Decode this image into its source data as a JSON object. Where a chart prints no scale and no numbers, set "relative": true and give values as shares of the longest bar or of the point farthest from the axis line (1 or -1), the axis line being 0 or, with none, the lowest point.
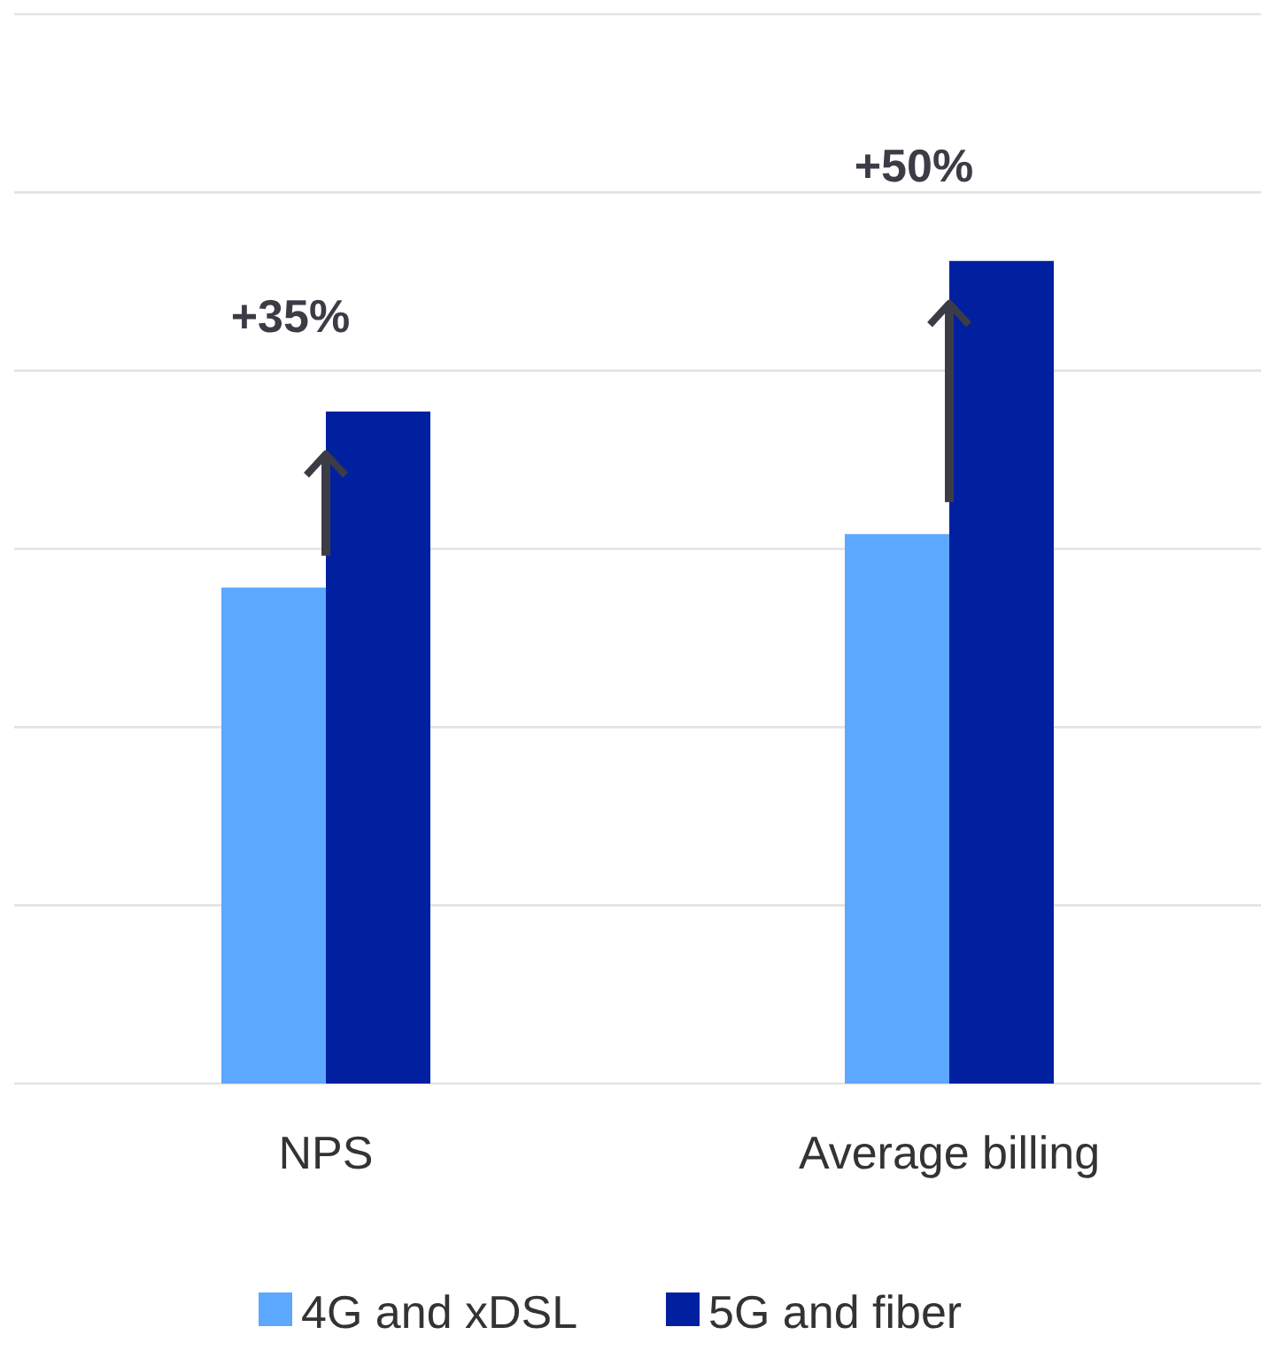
{
  "chart_data": {
    "type": "bar",
    "relative": true,
    "categories": [
      "NPS",
      "Average billing"
    ],
    "series": [
      {
        "name": "4G and xDSL",
        "color": "#5ca8ff",
        "values": [
          0.603,
          0.668
        ]
      },
      {
        "name": "5G and fiber",
        "color": "#00209f",
        "values": [
          0.817,
          1
        ]
      }
    ],
    "annotations": [
      "+35%",
      "+50%"
    ],
    "grid": true,
    "legend": "bottom"
  }
}
